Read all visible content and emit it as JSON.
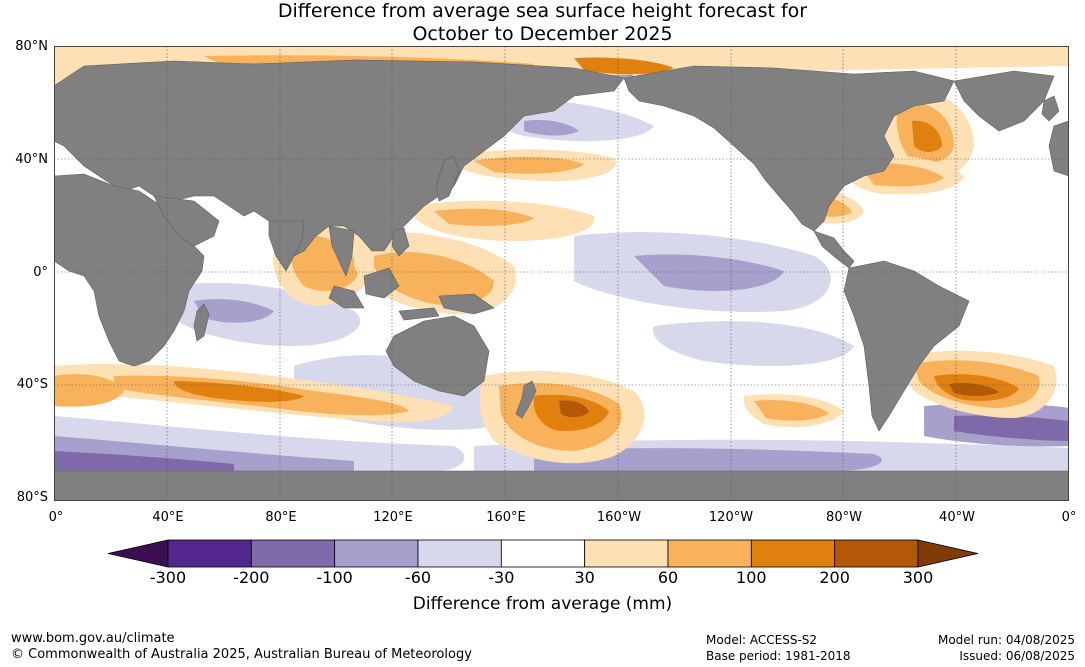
{
  "title": {
    "line1": "Difference from average sea surface height forecast for",
    "line2": "October to December 2025"
  },
  "map": {
    "lat_labels": [
      "80°N",
      "40°N",
      "0°",
      "40°S",
      "80°S"
    ],
    "lon_labels": [
      "0°",
      "40°E",
      "80°E",
      "120°E",
      "160°E",
      "160°W",
      "120°W",
      "80°W",
      "40°W",
      "0°"
    ]
  },
  "legend": {
    "ticks": [
      "-300",
      "-200",
      "-100",
      "-60",
      "-30",
      "30",
      "60",
      "100",
      "200",
      "300"
    ],
    "colors": [
      "#3b0f52",
      "#54278f",
      "#7f6aa9",
      "#a8a0cc",
      "#d8d8ec",
      "#ffffff",
      "#fde0b4",
      "#f9b25c",
      "#e0800f",
      "#b35806",
      "#7f3b08"
    ],
    "label": "Difference from average (mm)"
  },
  "footer": {
    "url": "www.bom.gov.au/climate",
    "copyright": "© Commonwealth of Australia 2025, Australian Bureau of Meteorology",
    "model": "Model: ACCESS-S2",
    "base_period": "Base period: 1981-2018",
    "model_run": "Model run: 04/08/2025",
    "issued": "Issued: 06/08/2025"
  },
  "colors": {
    "land": "#808080",
    "ocean_neutral": "#ffffff"
  }
}
